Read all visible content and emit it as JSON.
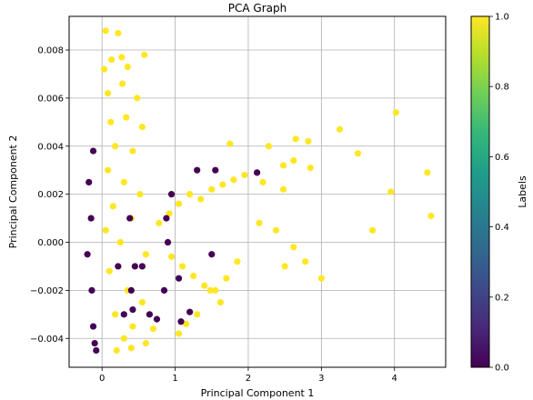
{
  "chart_data": {
    "type": "scatter",
    "title": "PCA Graph",
    "xlabel": "Principal Component 1",
    "ylabel": "Principal Component 2",
    "xlim": [
      -0.45,
      4.7
    ],
    "ylim": [
      -0.0052,
      0.0094
    ],
    "x_ticks": [
      0,
      1,
      2,
      3,
      4
    ],
    "x_tick_labels": [
      "0",
      "1",
      "2",
      "3",
      "4"
    ],
    "y_ticks": [
      -0.004,
      -0.002,
      0.0,
      0.002,
      0.004,
      0.006,
      0.008
    ],
    "y_tick_labels": [
      "−0.004",
      "−0.002",
      "0.000",
      "0.002",
      "0.004",
      "0.006",
      "0.008"
    ],
    "grid": true,
    "colorbar": {
      "label": "Labels",
      "colormap": "viridis",
      "range": [
        0.0,
        1.0
      ],
      "ticks": [
        0.0,
        0.2,
        0.4,
        0.6,
        0.8,
        1.0
      ],
      "tick_labels": [
        "0.0",
        "0.2",
        "0.4",
        "0.6",
        "0.8",
        "1.0"
      ],
      "colors": [
        "#440154",
        "#482878",
        "#3e4989",
        "#31688e",
        "#26828e",
        "#1f9e89",
        "#35b779",
        "#6ece58",
        "#b5de2b",
        "#fde725"
      ]
    },
    "series": [
      {
        "label_value": 1,
        "color": "#fde725",
        "points": [
          [
            0.05,
            0.0088
          ],
          [
            0.22,
            0.0087
          ],
          [
            0.13,
            0.0076
          ],
          [
            0.27,
            0.0077
          ],
          [
            0.58,
            0.0078
          ],
          [
            0.03,
            0.0072
          ],
          [
            0.35,
            0.0073
          ],
          [
            0.08,
            0.0062
          ],
          [
            0.28,
            0.0066
          ],
          [
            0.48,
            0.006
          ],
          [
            0.12,
            0.005
          ],
          [
            0.33,
            0.0052
          ],
          [
            0.55,
            0.0048
          ],
          [
            0.18,
            0.004
          ],
          [
            0.42,
            0.0038
          ],
          [
            0.08,
            0.003
          ],
          [
            0.3,
            0.0025
          ],
          [
            0.52,
            0.002
          ],
          [
            0.15,
            0.0015
          ],
          [
            0.4,
            0.001
          ],
          [
            0.05,
            0.0005
          ],
          [
            0.25,
            0.0
          ],
          [
            0.6,
            -0.0005
          ],
          [
            0.1,
            -0.0012
          ],
          [
            0.35,
            -0.002
          ],
          [
            0.55,
            -0.0025
          ],
          [
            0.18,
            -0.003
          ],
          [
            0.42,
            -0.0035
          ],
          [
            0.3,
            -0.004
          ],
          [
            0.7,
            -0.0036
          ],
          [
            0.78,
            0.0008
          ],
          [
            0.92,
            0.0012
          ],
          [
            1.05,
            0.0016
          ],
          [
            1.2,
            0.002
          ],
          [
            1.35,
            0.0018
          ],
          [
            1.5,
            0.0022
          ],
          [
            1.65,
            0.0024
          ],
          [
            1.8,
            0.0026
          ],
          [
            0.95,
            -0.0006
          ],
          [
            1.1,
            -0.001
          ],
          [
            1.25,
            -0.0014
          ],
          [
            1.4,
            -0.0018
          ],
          [
            1.55,
            -0.002
          ],
          [
            1.7,
            -0.0015
          ],
          [
            1.85,
            -0.0008
          ],
          [
            1.75,
            0.0041
          ],
          [
            2.28,
            0.004
          ],
          [
            2.65,
            0.0043
          ],
          [
            2.82,
            0.0042
          ],
          [
            3.25,
            0.0047
          ],
          [
            3.5,
            0.0037
          ],
          [
            4.02,
            0.0054
          ],
          [
            2.62,
            0.0034
          ],
          [
            2.85,
            0.0031
          ],
          [
            2.48,
            0.0032
          ],
          [
            1.95,
            0.0028
          ],
          [
            2.2,
            0.0025
          ],
          [
            2.48,
            0.0022
          ],
          [
            2.15,
            0.0008
          ],
          [
            2.38,
            0.0005
          ],
          [
            2.62,
            -0.0002
          ],
          [
            2.78,
            -0.0008
          ],
          [
            3.0,
            -0.0015
          ],
          [
            2.5,
            -0.001
          ],
          [
            3.95,
            0.0021
          ],
          [
            4.45,
            0.0029
          ],
          [
            4.5,
            0.0011
          ],
          [
            3.7,
            0.0005
          ],
          [
            1.48,
            -0.002
          ],
          [
            1.62,
            -0.0025
          ],
          [
            1.3,
            -0.003
          ],
          [
            1.15,
            -0.0034
          ],
          [
            1.05,
            -0.0038
          ],
          [
            0.6,
            -0.0042
          ],
          [
            0.4,
            -0.0044
          ],
          [
            0.2,
            -0.0045
          ]
        ]
      },
      {
        "label_value": 0,
        "color": "#440154",
        "points": [
          [
            -0.12,
            0.0038
          ],
          [
            -0.18,
            0.0025
          ],
          [
            -0.15,
            0.001
          ],
          [
            -0.2,
            -0.0005
          ],
          [
            -0.14,
            -0.002
          ],
          [
            -0.12,
            -0.0035
          ],
          [
            -0.1,
            -0.0042
          ],
          [
            -0.08,
            -0.0045
          ],
          [
            0.38,
            0.001
          ],
          [
            0.95,
            0.002
          ],
          [
            0.88,
            0.001
          ],
          [
            0.9,
            0.0
          ],
          [
            0.55,
            -0.001
          ],
          [
            0.85,
            -0.002
          ],
          [
            1.3,
            0.003
          ],
          [
            1.55,
            0.003
          ],
          [
            2.12,
            0.0029
          ],
          [
            1.5,
            -0.0005
          ],
          [
            1.05,
            -0.0015
          ],
          [
            0.45,
            -0.001
          ],
          [
            0.4,
            -0.002
          ],
          [
            0.42,
            -0.0028
          ],
          [
            0.65,
            -0.003
          ],
          [
            0.75,
            -0.0032
          ],
          [
            1.2,
            -0.0029
          ],
          [
            1.08,
            -0.0033
          ],
          [
            0.22,
            -0.001
          ],
          [
            0.3,
            -0.003
          ]
        ]
      }
    ]
  }
}
